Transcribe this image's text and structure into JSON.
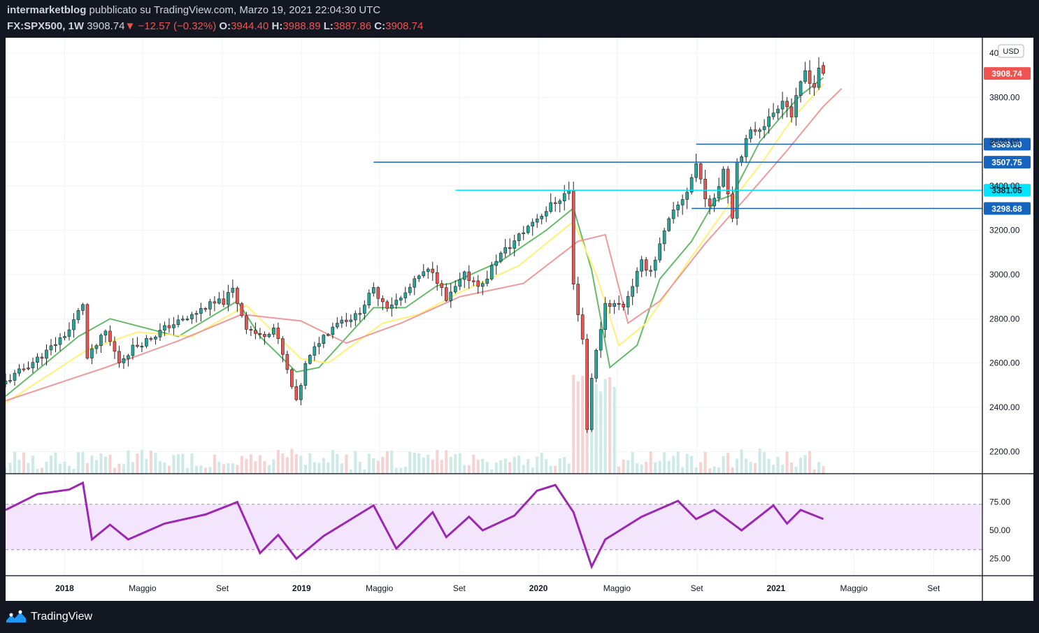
{
  "header": {
    "author": "intermarketblog",
    "published_text": "pubblicato su TradingView.com, Marzo 19, 2021 22:04:30 UTC",
    "symbol": "FX:SPX500, 1W",
    "last": "3908.74",
    "change": "−12.57 (−0.32%)",
    "open_label": "O:",
    "open": "3944.40",
    "high_label": "H:",
    "high": "3988.89",
    "low_label": "L:",
    "low": "3887.86",
    "close_label": "C:",
    "close": "3908.74"
  },
  "footer": {
    "brand": "TradingView"
  },
  "colors": {
    "up": "#26a69a",
    "down": "#ef5350",
    "ma_fast": "#66bb6a",
    "ma_mid": "#fff176",
    "ma_slow": "#ef9a9a",
    "rsi": "#9c27b0",
    "rsi_band": "#f3e5fc",
    "level_blue": "#1565c0",
    "level_cyan": "#00e5ff"
  },
  "chart_data": [
    {
      "type": "candlestick",
      "symbol": "FX:SPX500",
      "interval": "1W",
      "currency": "USD",
      "ylim": [
        2100,
        4070
      ],
      "y_ticks": [
        "4000.00",
        "3800.00",
        "3600.00",
        "3400.00",
        "3200.00",
        "3000.00",
        "2800.00",
        "2600.00",
        "2400.00",
        "2200.00"
      ],
      "x_ticks": [
        "2018",
        "Maggio",
        "Set",
        "2019",
        "Maggio",
        "Set",
        "2020",
        "Maggio",
        "Set",
        "2021",
        "Maggio",
        "Set"
      ],
      "x_tick_dates": [
        "2018-01-01",
        "2018-05-01",
        "2018-09-01",
        "2019-01-01",
        "2019-05-01",
        "2019-09-01",
        "2020-01-01",
        "2020-05-01",
        "2020-09-01",
        "2021-01-01",
        "2021-05-01",
        "2021-09-01"
      ],
      "x_range": [
        "2017-10-02",
        "2021-11-15"
      ],
      "price_labels": [
        {
          "text": "3908.74",
          "value": 3908.74,
          "style": "last-price"
        },
        {
          "text": "3589.00",
          "value": 3589.0,
          "style": "level"
        },
        {
          "text": "3507.75",
          "value": 3507.75,
          "style": "level"
        },
        {
          "text": "3381.05",
          "value": 3381.05,
          "style": "level-cyan"
        },
        {
          "text": "3298.68",
          "value": 3298.68,
          "style": "level"
        }
      ],
      "horizontal_levels": [
        {
          "value": 3589.0,
          "from": "2020-08-31",
          "to": "2021-11-15",
          "color": "blue"
        },
        {
          "value": 3507.75,
          "from": "2019-04-22",
          "to": "2021-11-15",
          "color": "blue"
        },
        {
          "value": 3381.05,
          "from": "2019-08-26",
          "to": "2021-11-15",
          "color": "cyan"
        },
        {
          "value": 3298.68,
          "from": "2020-08-24",
          "to": "2021-11-15",
          "color": "blue"
        }
      ],
      "series": [
        {
          "role": "price",
          "name": "",
          "x": [
            "2017-10-02",
            "2017-11-06",
            "2017-12-04",
            "2018-01-08",
            "2018-01-29",
            "2018-02-05",
            "2018-03-05",
            "2018-03-26",
            "2018-04-16",
            "2018-05-14",
            "2018-06-11",
            "2018-07-09",
            "2018-08-06",
            "2018-09-03",
            "2018-09-17",
            "2018-10-08",
            "2018-10-29",
            "2018-11-19",
            "2018-12-03",
            "2018-12-24",
            "2019-01-07",
            "2019-01-28",
            "2019-02-25",
            "2019-03-25",
            "2019-04-22",
            "2019-05-13",
            "2019-06-03",
            "2019-07-01",
            "2019-07-22",
            "2019-08-12",
            "2019-09-09",
            "2019-10-07",
            "2019-10-28",
            "2019-11-25",
            "2019-12-23",
            "2020-01-20",
            "2020-02-17",
            "2020-02-24",
            "2020-03-09",
            "2020-03-16",
            "2020-03-23",
            "2020-04-13",
            "2020-05-11",
            "2020-06-08",
            "2020-06-22",
            "2020-07-20",
            "2020-08-17",
            "2020-08-31",
            "2020-09-21",
            "2020-10-12",
            "2020-10-26",
            "2020-11-02",
            "2020-11-23",
            "2020-12-21",
            "2021-01-11",
            "2021-01-25",
            "2021-02-15",
            "2021-03-01",
            "2021-03-08",
            "2021-03-15"
          ],
          "values": [
            2515,
            2590,
            2650,
            2750,
            2870,
            2620,
            2740,
            2605,
            2670,
            2715,
            2770,
            2800,
            2855,
            2880,
            2930,
            2765,
            2720,
            2760,
            2635,
            2420,
            2590,
            2700,
            2790,
            2810,
            2930,
            2860,
            2890,
            2990,
            3025,
            2880,
            2995,
            2950,
            3070,
            3150,
            3240,
            3310,
            3380,
            2950,
            2710,
            2300,
            2540,
            2870,
            2860,
            3050,
            3020,
            3240,
            3380,
            3500,
            3290,
            3480,
            3270,
            3510,
            3640,
            3700,
            3800,
            3720,
            3920,
            3850,
            3940,
            3908.74
          ]
        },
        {
          "role": "ma-fast",
          "name": "",
          "x": [
            "2017-10-02",
            "2018-01-22",
            "2018-03-12",
            "2018-06-25",
            "2018-09-24",
            "2018-10-29",
            "2018-12-24",
            "2019-01-28",
            "2019-04-22",
            "2019-06-10",
            "2019-07-29",
            "2019-08-19",
            "2019-11-04",
            "2020-01-13",
            "2020-02-24",
            "2020-03-23",
            "2020-04-20",
            "2020-06-01",
            "2020-07-06",
            "2020-08-24",
            "2020-09-28",
            "2020-10-26",
            "2020-12-07",
            "2021-01-11",
            "2021-02-08",
            "2021-03-15"
          ],
          "values": [
            2450,
            2720,
            2800,
            2720,
            2880,
            2720,
            2560,
            2580,
            2850,
            2850,
            2950,
            2960,
            3060,
            3200,
            3300,
            3020,
            2580,
            2680,
            2980,
            3150,
            3330,
            3360,
            3600,
            3720,
            3810,
            3890
          ]
        },
        {
          "role": "ma-mid",
          "name": "",
          "x": [
            "2017-10-02",
            "2018-02-05",
            "2018-04-23",
            "2018-07-16",
            "2018-10-08",
            "2018-12-31",
            "2019-02-11",
            "2019-05-06",
            "2019-07-01",
            "2019-09-02",
            "2019-12-02",
            "2020-02-24",
            "2020-03-30",
            "2020-05-04",
            "2020-06-15",
            "2020-08-24",
            "2020-10-19",
            "2020-12-14",
            "2021-01-25",
            "2021-03-15"
          ],
          "values": [
            2420,
            2660,
            2740,
            2720,
            2860,
            2620,
            2600,
            2780,
            2820,
            2920,
            3040,
            3240,
            3000,
            2680,
            2780,
            3080,
            3310,
            3520,
            3700,
            3860
          ]
        },
        {
          "role": "ma-slow",
          "name": "",
          "x": [
            "2017-10-02",
            "2018-03-05",
            "2018-06-25",
            "2018-10-01",
            "2018-12-31",
            "2019-03-11",
            "2019-06-03",
            "2019-09-02",
            "2019-12-09",
            "2020-03-02",
            "2020-04-13",
            "2020-05-18",
            "2020-07-06",
            "2020-09-14",
            "2020-11-23",
            "2021-01-18",
            "2021-03-15",
            "2021-04-12"
          ],
          "values": [
            2430,
            2580,
            2700,
            2820,
            2790,
            2690,
            2780,
            2900,
            2960,
            3150,
            3180,
            2780,
            2880,
            3140,
            3370,
            3560,
            3760,
            3840
          ]
        }
      ]
    },
    {
      "type": "line",
      "role": "rsi",
      "ylim": [
        10,
        100
      ],
      "y_ticks": [
        "75.00",
        "50.00",
        "25.00"
      ],
      "bands": [
        33,
        73
      ],
      "series": [
        {
          "name": "",
          "x": [
            "2017-10-02",
            "2017-11-20",
            "2018-01-08",
            "2018-01-29",
            "2018-02-12",
            "2018-03-12",
            "2018-04-09",
            "2018-06-04",
            "2018-08-06",
            "2018-09-24",
            "2018-10-29",
            "2018-11-26",
            "2018-12-24",
            "2019-02-04",
            "2019-04-22",
            "2019-05-27",
            "2019-07-22",
            "2019-08-12",
            "2019-09-16",
            "2019-10-07",
            "2019-11-25",
            "2019-12-30",
            "2020-01-27",
            "2020-02-24",
            "2020-03-23",
            "2020-04-13",
            "2020-06-08",
            "2020-08-03",
            "2020-08-31",
            "2020-09-28",
            "2020-11-09",
            "2020-12-28",
            "2021-01-18",
            "2021-02-08",
            "2021-03-15"
          ],
          "values": [
            68,
            82,
            86,
            92,
            42,
            55,
            42,
            56,
            64,
            75,
            30,
            46,
            25,
            45,
            72,
            34,
            66,
            44,
            62,
            50,
            63,
            85,
            90,
            66,
            18,
            42,
            62,
            76,
            60,
            68,
            50,
            72,
            56,
            68,
            60
          ]
        }
      ]
    }
  ]
}
